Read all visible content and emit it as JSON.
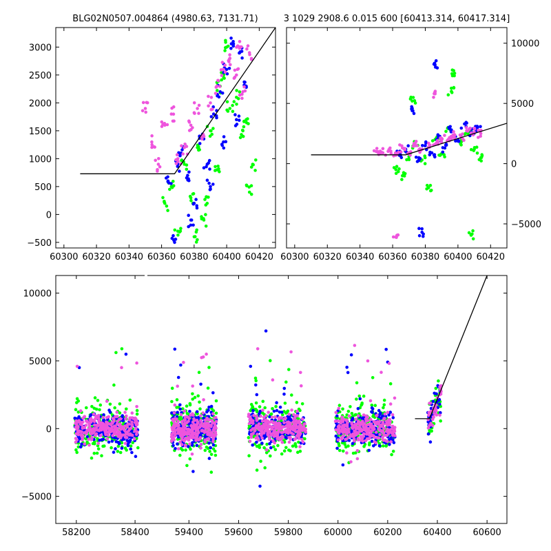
{
  "title_left": "BLG02N0507.004864 (4980.63, 7131.71)",
  "title_right": "3 1029 2908.6 0.015 600 [60413.314, 60417.314]",
  "colors": {
    "green": "#00ff00",
    "blue": "#0000ff",
    "magenta": "#ee55dd",
    "line": "#000000"
  },
  "chart_data": [
    {
      "type": "scatter",
      "panel": "top-left",
      "xlim": [
        60295,
        60430
      ],
      "ylim": [
        -600,
        3350
      ],
      "xticks": [
        60300,
        60320,
        60340,
        60360,
        60380,
        60400,
        60420
      ],
      "yticks": [
        -500,
        0,
        500,
        1000,
        1500,
        2000,
        2500,
        3000
      ],
      "series": [
        {
          "color": "green",
          "points": [
            [
              60362,
              200
            ],
            [
              60366,
              500
            ],
            [
              60370,
              -300
            ],
            [
              60374,
              900
            ],
            [
              60378,
              300
            ],
            [
              60382,
              1200
            ],
            [
              60386,
              -100
            ],
            [
              60390,
              1500
            ],
            [
              60394,
              800
            ],
            [
              60398,
              2500
            ],
            [
              60402,
              1900
            ],
            [
              60406,
              2100
            ],
            [
              60410,
              1500
            ],
            [
              60412,
              1700
            ],
            [
              60414,
              400
            ],
            [
              60416,
              900
            ],
            [
              60400,
              3000
            ],
            [
              60396,
              2300
            ],
            [
              60388,
              200
            ],
            [
              60380,
              -400
            ]
          ]
        },
        {
          "color": "blue",
          "points": [
            [
              60364,
              600
            ],
            [
              60368,
              -500
            ],
            [
              60372,
              1100
            ],
            [
              60376,
              700
            ],
            [
              60380,
              200
            ],
            [
              60384,
              1400
            ],
            [
              60388,
              900
            ],
            [
              60392,
              1800
            ],
            [
              60396,
              2200
            ],
            [
              60400,
              2600
            ],
            [
              60404,
              3100
            ],
            [
              60408,
              2900
            ],
            [
              60412,
              2300
            ],
            [
              60406,
              1700
            ],
            [
              60398,
              1300
            ],
            [
              60390,
              500
            ],
            [
              60378,
              -100
            ],
            [
              60370,
              900
            ]
          ]
        },
        {
          "color": "magenta",
          "points": [
            [
              60350,
              1900
            ],
            [
              60354,
              1300
            ],
            [
              60358,
              900
            ],
            [
              60362,
              1600
            ],
            [
              60366,
              1800
            ],
            [
              60370,
              1000
            ],
            [
              60374,
              1200
            ],
            [
              60378,
              1600
            ],
            [
              60382,
              1900
            ],
            [
              60386,
              1400
            ],
            [
              60390,
              2000
            ],
            [
              60394,
              2300
            ],
            [
              60398,
              2600
            ],
            [
              60402,
              2800
            ],
            [
              60406,
              2500
            ],
            [
              60410,
              2200
            ],
            [
              60414,
              2900
            ],
            [
              60408,
              3100
            ]
          ]
        }
      ],
      "model_line": [
        [
          60310,
          730
        ],
        [
          60368,
          730
        ],
        [
          60430,
          3350
        ]
      ]
    },
    {
      "type": "scatter",
      "panel": "top-right",
      "xlim": [
        60295,
        60430
      ],
      "ylim": [
        -7000,
        11300
      ],
      "xticks": [
        60300,
        60320,
        60340,
        60360,
        60380,
        60400,
        60420
      ],
      "yticks": [
        -5000,
        0,
        5000,
        10000
      ],
      "series": [
        {
          "color": "green",
          "points": [
            [
              60362,
              -500
            ],
            [
              60366,
              -1000
            ],
            [
              60370,
              600
            ],
            [
              60374,
              1500
            ],
            [
              60378,
              300
            ],
            [
              60382,
              -2000
            ],
            [
              60386,
              2000
            ],
            [
              60390,
              800
            ],
            [
              60394,
              3000
            ],
            [
              60398,
              7500
            ],
            [
              60402,
              1800
            ],
            [
              60406,
              2500
            ],
            [
              60410,
              1200
            ],
            [
              60414,
              500
            ],
            [
              60408,
              -5900
            ],
            [
              60372,
              5200
            ],
            [
              60396,
              6000
            ]
          ]
        },
        {
          "color": "blue",
          "points": [
            [
              60364,
              700
            ],
            [
              60368,
              1200
            ],
            [
              60372,
              4400
            ],
            [
              60376,
              500
            ],
            [
              60380,
              1500
            ],
            [
              60384,
              900
            ],
            [
              60388,
              2200
            ],
            [
              60392,
              1300
            ],
            [
              60396,
              2800
            ],
            [
              60400,
              2000
            ],
            [
              60404,
              3300
            ],
            [
              60408,
              2600
            ],
            [
              60412,
              3000
            ],
            [
              60378,
              -5700
            ],
            [
              60386,
              8200
            ]
          ]
        },
        {
          "color": "magenta",
          "points": [
            [
              60350,
              1000
            ],
            [
              60354,
              900
            ],
            [
              60358,
              1100
            ],
            [
              60362,
              700
            ],
            [
              60366,
              1300
            ],
            [
              60370,
              900
            ],
            [
              60374,
              1500
            ],
            [
              60378,
              1200
            ],
            [
              60382,
              1700
            ],
            [
              60386,
              1600
            ],
            [
              60390,
              2100
            ],
            [
              60394,
              2000
            ],
            [
              60398,
              2400
            ],
            [
              60402,
              2200
            ],
            [
              60406,
              2700
            ],
            [
              60410,
              2600
            ],
            [
              60414,
              2500
            ],
            [
              60362,
              -6100
            ],
            [
              60386,
              5800
            ]
          ]
        }
      ],
      "model_line": [
        [
          60310,
          730
        ],
        [
          60368,
          730
        ],
        [
          60430,
          3350
        ]
      ]
    },
    {
      "type": "scatter",
      "panel": "bottom",
      "xlim": [
        58130,
        60680
      ],
      "ylim": [
        -7000,
        11300
      ],
      "xticks": [
        58200,
        58400,
        59400,
        59600,
        59800,
        60000,
        60200,
        60400,
        60600
      ],
      "yticks": [
        -5000,
        0,
        5000,
        10000
      ],
      "series": [
        {
          "color": "green",
          "points": []
        },
        {
          "color": "blue",
          "points": []
        },
        {
          "color": "magenta",
          "points": []
        }
      ],
      "model_line": [
        [
          60310,
          730
        ],
        [
          60368,
          730
        ],
        [
          60600,
          11300
        ]
      ]
    }
  ]
}
